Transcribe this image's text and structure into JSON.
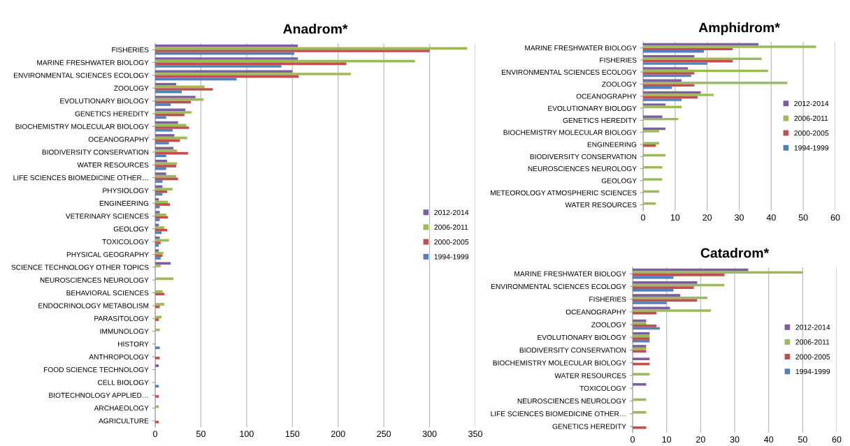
{
  "chart_data": [
    {
      "type": "bar",
      "orientation": "horizontal",
      "title": "Anadrom*",
      "xlim": [
        0,
        350
      ],
      "xticks": [
        0,
        50,
        100,
        150,
        200,
        250,
        300,
        350
      ],
      "grid": "x",
      "legend": "right",
      "categories": [
        "FISHERIES",
        "MARINE FRESHWATER BIOLOGY",
        "ENVIRONMENTAL SCIENCES ECOLOGY",
        "ZOOLOGY",
        "EVOLUTIONARY BIOLOGY",
        "GENETICS HEREDITY",
        "BIOCHEMISTRY MOLECULAR BIOLOGY",
        "OCEANOGRAPHY",
        "BIODIVERSITY CONSERVATION",
        "WATER RESOURCES",
        "LIFE SCIENCES BIOMEDICINE OTHER…",
        "PHYSIOLOGY",
        "ENGINEERING",
        "VETERINARY SCIENCES",
        "GEOLOGY",
        "TOXICOLOGY",
        "PHYSICAL GEOGRAPHY",
        "SCIENCE TECHNOLOGY OTHER TOPICS",
        "NEUROSCIENCES NEUROLOGY",
        "BEHAVIORAL SCIENCES",
        "ENDOCRINOLOGY METABOLISM",
        "PARASITOLOGY",
        "IMMUNOLOGY",
        "HISTORY",
        "ANTHROPOLOGY",
        "FOOD SCIENCE TECHNOLOGY",
        "CELL BIOLOGY",
        "BIOTECHNOLOGY APPLIED…",
        "ARCHAEOLOGY",
        "AGRICULTURE"
      ],
      "series": [
        {
          "name": "2012-2014",
          "color": "#7d5fa0",
          "values": [
            156,
            156,
            150,
            23,
            44,
            33,
            25,
            21,
            20,
            13,
            12,
            8,
            4,
            5,
            4,
            5,
            4,
            17,
            null,
            null,
            null,
            null,
            null,
            null,
            null,
            4,
            null,
            null,
            null,
            null
          ]
        },
        {
          "name": "2006-2011",
          "color": "#9bbb59",
          "values": [
            341,
            284,
            214,
            54,
            53,
            40,
            34,
            35,
            24,
            24,
            23,
            19,
            14,
            12,
            10,
            15,
            9,
            6,
            20,
            8,
            10,
            7,
            5,
            null,
            null,
            null,
            null,
            null,
            4,
            null
          ]
        },
        {
          "name": "2000-2005",
          "color": "#c0504d",
          "values": [
            300,
            209,
            157,
            63,
            39,
            32,
            37,
            27,
            36,
            23,
            25,
            13,
            16,
            14,
            13,
            6,
            8,
            null,
            null,
            10,
            5,
            4,
            null,
            null,
            5,
            null,
            null,
            4,
            null,
            4
          ]
        },
        {
          "name": "1994-1999",
          "color": "#4f81bd",
          "values": [
            152,
            138,
            89,
            29,
            17,
            12,
            19,
            15,
            12,
            12,
            8,
            8,
            5,
            5,
            7,
            4,
            6,
            null,
            null,
            null,
            null,
            null,
            null,
            5,
            null,
            null,
            4,
            null,
            null,
            null
          ]
        }
      ]
    },
    {
      "type": "bar",
      "orientation": "horizontal",
      "title": "Amphidrom*",
      "xlim": [
        0,
        60
      ],
      "xticks": [
        0,
        10,
        20,
        30,
        40,
        50,
        60
      ],
      "grid": "x",
      "legend": "right",
      "categories": [
        "MARINE FRESHWATER BIOLOGY",
        "FISHERIES",
        "ENVIRONMENTAL SCIENCES ECOLOGY",
        "ZOOLOGY",
        "OCEANOGRAPHY",
        "EVOLUTIONARY BIOLOGY",
        "GENETICS HEREDITY",
        "BIOCHEMISTRY MOLECULAR BIOLOGY",
        "ENGINEERING",
        "BIODIVERSITY CONSERVATION",
        "NEUROSCIENCES NEUROLOGY",
        "GEOLOGY",
        "METEOROLOGY ATMOSPHERIC SCIENCES",
        "WATER RESOURCES"
      ],
      "series": [
        {
          "name": "2012-2014",
          "color": "#7d5fa0",
          "values": [
            36,
            16,
            14,
            12,
            18,
            7,
            6,
            7,
            null,
            null,
            null,
            null,
            null,
            null
          ]
        },
        {
          "name": "2006-2011",
          "color": "#9bbb59",
          "values": [
            54,
            37,
            39,
            45,
            22,
            12,
            11,
            5,
            5,
            7,
            6,
            6,
            5,
            4
          ]
        },
        {
          "name": "2000-2005",
          "color": "#c0504d",
          "values": [
            28,
            28,
            16,
            16,
            17,
            null,
            null,
            null,
            4,
            null,
            null,
            null,
            null,
            null
          ]
        },
        {
          "name": "1994-1999",
          "color": "#4f81bd",
          "values": [
            19,
            20,
            15,
            9,
            12,
            null,
            null,
            null,
            null,
            null,
            null,
            null,
            null,
            null
          ]
        }
      ]
    },
    {
      "type": "bar",
      "orientation": "horizontal",
      "title": "Catadrom*",
      "xlim": [
        0,
        60
      ],
      "xticks": [
        0,
        10,
        20,
        30,
        40,
        50,
        60
      ],
      "grid": "x",
      "legend": "right",
      "categories": [
        "MARINE FRESHWATER BIOLOGY",
        "ENVIRONMENTAL SCIENCES ECOLOGY",
        "FISHERIES",
        "OCEANOGRAPHY",
        "ZOOLOGY",
        "EVOLUTIONARY BIOLOGY",
        "BIODIVERSITY CONSERVATION",
        "BIOCHEMISTRY MOLECULAR BIOLOGY",
        "WATER RESOURCES",
        "TOXICOLOGY",
        "NEUROSCIENCES NEUROLOGY",
        "LIFE SCIENCES BIOMEDICINE OTHER…",
        "GENETICS HEREDITY"
      ],
      "series": [
        {
          "name": "2012-2014",
          "color": "#7d5fa0",
          "values": [
            34,
            19,
            14,
            11,
            4,
            5,
            4,
            5,
            null,
            4,
            null,
            null,
            null
          ]
        },
        {
          "name": "2006-2011",
          "color": "#9bbb59",
          "values": [
            50,
            27,
            22,
            23,
            4,
            5,
            4,
            null,
            5,
            null,
            4,
            4,
            null
          ]
        },
        {
          "name": "2000-2005",
          "color": "#c0504d",
          "values": [
            27,
            18,
            19,
            7,
            7,
            5,
            4,
            5,
            null,
            null,
            null,
            null,
            4
          ]
        },
        {
          "name": "1994-1999",
          "color": "#4f81bd",
          "values": [
            12,
            12,
            10,
            null,
            8,
            5,
            null,
            null,
            null,
            null,
            null,
            null,
            null
          ]
        }
      ]
    }
  ]
}
